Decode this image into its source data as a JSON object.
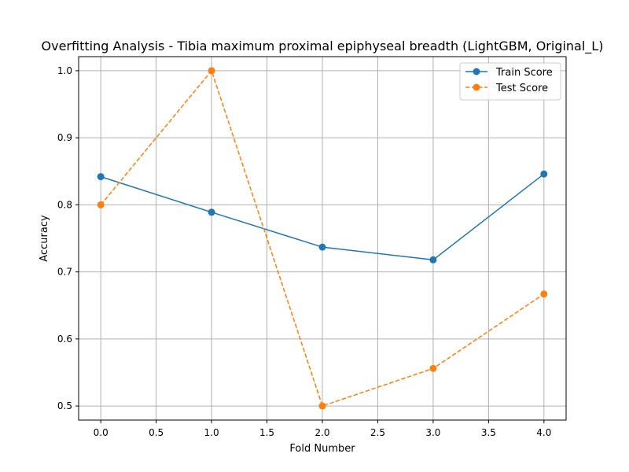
{
  "chart_data": {
    "type": "line",
    "title": "Overfitting Analysis - Tibia maximum proximal epiphyseal breadth (LightGBM, Original_L)",
    "xlabel": "Fold Number",
    "ylabel": "Accuracy",
    "xlim": [
      -0.2,
      4.2
    ],
    "ylim": [
      0.479,
      1.021
    ],
    "xticks": [
      0.0,
      0.5,
      1.0,
      1.5,
      2.0,
      2.5,
      3.0,
      3.5,
      4.0
    ],
    "xtick_labels": [
      "0.0",
      "0.5",
      "1.0",
      "1.5",
      "2.0",
      "2.5",
      "3.0",
      "3.5",
      "4.0"
    ],
    "yticks": [
      0.5,
      0.6,
      0.7,
      0.8,
      0.9,
      1.0
    ],
    "ytick_labels": [
      "0.5",
      "0.6",
      "0.7",
      "0.8",
      "0.9",
      "1.0"
    ],
    "grid": true,
    "legend_position": "top-right",
    "x": [
      0,
      1,
      2,
      3,
      4
    ],
    "series": [
      {
        "name": "Train Score",
        "values": [
          0.842,
          0.789,
          0.737,
          0.718,
          0.846
        ],
        "color": "#1f77b4",
        "dashed": false
      },
      {
        "name": "Test Score",
        "values": [
          0.8,
          1.0,
          0.5,
          0.556,
          0.667
        ],
        "color": "#ff7f0e",
        "dashed": true
      }
    ]
  }
}
